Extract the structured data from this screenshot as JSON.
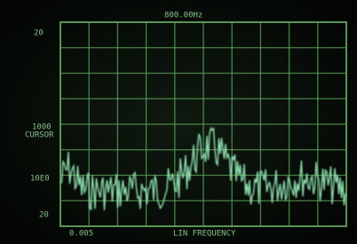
{
  "screen": {
    "top_readout": "800.00Hz",
    "left_labels": [
      "20",
      "1000",
      "CURSOR",
      "10E0",
      "20"
    ],
    "bottom_labels": [
      "0.005",
      "LIN FREQUENCY"
    ]
  }
}
